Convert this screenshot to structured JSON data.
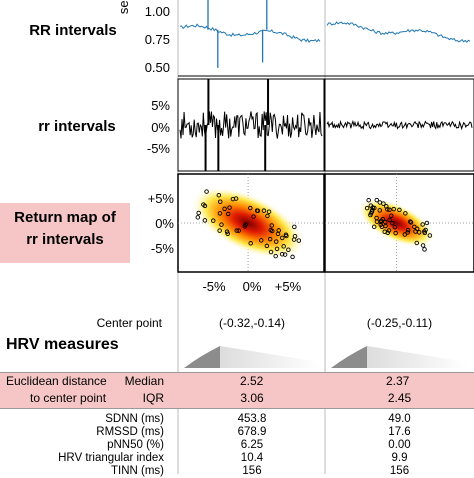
{
  "row_labels": {
    "rr_upper": "RR intervals",
    "rr_lower": "rr intervals",
    "return_map": "Return map of\nrr intervals"
  },
  "rr_upper_axis": {
    "unit": "sec",
    "ticks": [
      "1.00",
      "0.75",
      "0.50"
    ]
  },
  "rr_lower_axis": {
    "ticks": [
      "5%",
      "0%",
      "-5%"
    ]
  },
  "return_map_axis": {
    "y_ticks": [
      "+5%",
      "0%",
      "-5%"
    ],
    "x_ticks": [
      "-5%",
      "0%",
      "+5%"
    ]
  },
  "center_point": {
    "label": "Center point",
    "values": [
      "(-0.32,-0.14)",
      "(-0.25,-0.11)"
    ]
  },
  "hrv_title": "HRV measures",
  "euclid": {
    "label_line1": "Euclidean distance",
    "label_line2": "to center point",
    "median_label": "Median",
    "iqr_label": "IQR",
    "median_values": [
      "2.52",
      "2.37"
    ],
    "iqr_values": [
      "3.06",
      "2.45"
    ]
  },
  "metrics": [
    {
      "label": "SDNN (ms)",
      "values": [
        "453.8",
        "49.0"
      ]
    },
    {
      "label": "RMSSD (ms)",
      "values": [
        "678.9",
        "17.6"
      ]
    },
    {
      "label": "pNN50 (%)",
      "values": [
        "6.25",
        "0.00"
      ]
    },
    {
      "label": "HRV triangular index",
      "values": [
        "10.4",
        "9.9"
      ]
    },
    {
      "label": "TINN (ms)",
      "values": [
        "156",
        "156"
      ]
    }
  ],
  "colors": {
    "rr_series": "#1f77b4",
    "highlight": "#f6c6c6",
    "density_core": "#7a0000",
    "density_mid": "#ff3b00",
    "density_outer": "#ffe94d",
    "distribution_dark": "#8c8c8c",
    "distribution_light": "#d9d9d9"
  },
  "chart_data": [
    {
      "type": "line",
      "name_ref": "RR intervals",
      "ylabel": "sec",
      "ylim": [
        0.5,
        1.0
      ],
      "panels": [
        {
          "spikes": [
            {
              "pos": 0.2,
              "value": 1.3
            },
            {
              "pos": 0.27,
              "value": 0.45
            },
            {
              "pos": 0.62,
              "value": 1.3
            },
            {
              "pos": 0.59,
              "value": 0.5
            }
          ],
          "baseline_start": 0.82,
          "baseline_end": 0.72
        },
        {
          "spikes": [],
          "baseline_start": 0.85,
          "baseline_end": 0.72
        }
      ]
    },
    {
      "type": "line",
      "name_ref": "rr intervals",
      "ylim": [
        -10,
        10
      ],
      "yticks": [
        5,
        0,
        -5
      ],
      "panels": [
        {
          "spikes": [
            {
              "pos": 0.18,
              "value": -10
            },
            {
              "pos": 0.2,
              "value": 10
            },
            {
              "pos": 0.27,
              "value": -10
            },
            {
              "pos": 0.6,
              "value": -10
            },
            {
              "pos": 0.62,
              "value": 10
            }
          ],
          "noise_amplitude": 3
        },
        {
          "spikes": [],
          "noise_amplitude": 0.8
        }
      ]
    },
    {
      "type": "scatter",
      "name_ref": "Return map of rr intervals",
      "xlim": [
        -8,
        8
      ],
      "ylim": [
        -8,
        8
      ],
      "panels": [
        {
          "center": [
            -0.32,
            -0.14
          ],
          "spread": 3.0
        },
        {
          "center": [
            -0.25,
            -0.11
          ],
          "spread": 2.0
        }
      ]
    }
  ]
}
